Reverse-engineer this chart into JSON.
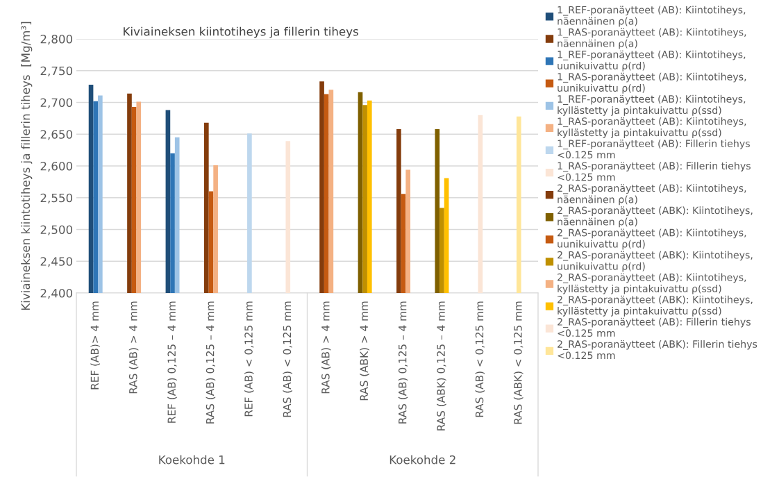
{
  "chart_data": {
    "type": "bar",
    "title": "Kiviaineksen kiintotiheys ja fillerin tiheys",
    "ylabel": "Kiviaineksen kiintotiheys ja fillerin tiheys  [Mg/m³]",
    "categories": [
      "REF (AB)> 4 mm",
      "RAS (AB) > 4 mm",
      "REF (AB) 0,125 – 4 mm",
      "RAS (AB) 0,125 – 4 mm",
      "REF (AB) < 0,125 mm",
      "RAS (AB) < 0,125 mm",
      "RAS (AB) > 4 mm",
      "RAS (ABK) > 4 mm",
      "RAS (AB) 0,125 – 4 mm",
      "RAS (ABK) 0,125 – 4 mm",
      "RAS (AB) < 0,125 mm",
      "RAS (ABK) < 0,125 mm"
    ],
    "annotations": [
      "Koekohde 1",
      "Koekohde 2"
    ],
    "series": [
      {
        "name": "1_REF-poranäytteet (AB): Kiintotiheys,\nnäennäinen ρ(a)",
        "color": "#1f4e79",
        "values": [
          2.728,
          null,
          2.688,
          null,
          null,
          null,
          null,
          null,
          null,
          null,
          null,
          null
        ]
      },
      {
        "name": "1_RAS-poranäytteet (AB): Kiintotiheys,\nnäennäinen ρ(a)",
        "color": "#843c0c",
        "values": [
          null,
          2.714,
          null,
          2.668,
          null,
          null,
          null,
          null,
          null,
          null,
          null,
          null
        ]
      },
      {
        "name": "1_REF-poranäytteet (AB): Kiintotiheys,\nuunikuivattu ρ(rd)",
        "color": "#2e75b6",
        "values": [
          2.702,
          null,
          2.62,
          null,
          null,
          null,
          null,
          null,
          null,
          null,
          null,
          null
        ]
      },
      {
        "name": "1_RAS-poranäytteet (AB): Kiintotiheys,\nuunikuivattu ρ(rd)",
        "color": "#c55a11",
        "values": [
          null,
          2.693,
          null,
          2.56,
          null,
          null,
          null,
          null,
          null,
          null,
          null,
          null
        ]
      },
      {
        "name": "1_REF-poranäytteet (AB): Kiintotiheys,\nkyllästetty ja pintakuivattu ρ(ssd)",
        "color": "#9dc3e6",
        "values": [
          2.711,
          null,
          2.645,
          null,
          null,
          null,
          null,
          null,
          null,
          null,
          null,
          null
        ]
      },
      {
        "name": "1_RAS-poranäytteet (AB): Kiintotiheys,\nkyllästetty ja pintakuivattu ρ(ssd)",
        "color": "#f4b183",
        "values": [
          null,
          2.701,
          null,
          2.601,
          null,
          null,
          null,
          null,
          null,
          null,
          null,
          null
        ]
      },
      {
        "name": "1_REF-poranäytteet (AB): Fillerin tiehys\n<0.125 mm",
        "color": "#bdd7ee",
        "values": [
          null,
          null,
          null,
          null,
          2.651,
          null,
          null,
          null,
          null,
          null,
          null,
          null
        ]
      },
      {
        "name": "1_RAS-poranäytteet (AB): Fillerin tiehys\n<0.125 mm",
        "color": "#fbe5d6",
        "values": [
          null,
          null,
          null,
          null,
          null,
          2.639,
          null,
          null,
          null,
          null,
          null,
          null
        ]
      },
      {
        "name": "2_RAS-poranäytteet (AB): Kiintotiheys,\nnäennäinen ρ(a)",
        "color": "#843c0c",
        "values": [
          null,
          null,
          null,
          null,
          null,
          null,
          2.733,
          null,
          2.658,
          null,
          null,
          null
        ]
      },
      {
        "name": "2_RAS-poranäytteet (ABK): Kiintotiheys,\nnäennäinen ρ(a)",
        "color": "#7f6000",
        "values": [
          null,
          null,
          null,
          null,
          null,
          null,
          null,
          2.716,
          null,
          2.658,
          null,
          null
        ]
      },
      {
        "name": "2_RAS-poranäytteet (AB): Kiintotiheys,\nuunikuivattu ρ(rd)",
        "color": "#c55a11",
        "values": [
          null,
          null,
          null,
          null,
          null,
          null,
          2.713,
          null,
          2.556,
          null,
          null,
          null
        ]
      },
      {
        "name": "2_RAS-poranäytteet (ABK): Kiintotiheys,\nuunikuivattu ρ(rd)",
        "color": "#bf9000",
        "values": [
          null,
          null,
          null,
          null,
          null,
          null,
          null,
          2.696,
          null,
          2.534,
          null,
          null
        ]
      },
      {
        "name": "2_RAS-poranäytteet (AB): Kiintotiheys,\nkyllästetty ja pintakuivattu ρ(ssd)",
        "color": "#f4b183",
        "values": [
          null,
          null,
          null,
          null,
          null,
          null,
          2.72,
          null,
          2.594,
          null,
          null,
          null
        ]
      },
      {
        "name": "2_RAS-poranäytteet (ABK): Kiintotiheys,\nkyllästetty ja pintakuivattu ρ(ssd)",
        "color": "#ffc000",
        "values": [
          null,
          null,
          null,
          null,
          null,
          null,
          null,
          2.703,
          null,
          2.581,
          null,
          null
        ]
      },
      {
        "name": "2_RAS-poranäytteet (AB): Fillerin tiehys\n<0.125 mm",
        "color": "#fbe5d6",
        "values": [
          null,
          null,
          null,
          null,
          null,
          null,
          null,
          null,
          null,
          null,
          2.68,
          null
        ]
      },
      {
        "name": "2_RAS-poranäytteet (ABK): Fillerin tiehys\n<0.125 mm",
        "color": "#ffe699",
        "values": [
          null,
          null,
          null,
          null,
          null,
          null,
          null,
          null,
          null,
          null,
          null,
          2.678
        ]
      }
    ],
    "ylim": [
      2.4,
      2.8
    ],
    "yticks": [
      {
        "value": 2.4,
        "label": "2,400"
      },
      {
        "value": 2.45,
        "label": "2,450"
      },
      {
        "value": 2.5,
        "label": "2,500"
      },
      {
        "value": 2.55,
        "label": "2,550"
      },
      {
        "value": 2.6,
        "label": "2,600"
      },
      {
        "value": 2.65,
        "label": "2,650"
      },
      {
        "value": 2.7,
        "label": "2,700"
      },
      {
        "value": 2.75,
        "label": "2,750"
      },
      {
        "value": 2.8,
        "label": "2,800"
      }
    ],
    "grid": "y",
    "legend": "right"
  }
}
